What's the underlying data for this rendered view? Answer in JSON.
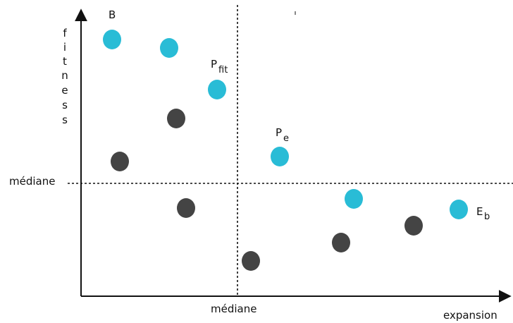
{
  "axes": {
    "x_label": "expansion",
    "y_label_letters": [
      "f",
      "i",
      "t",
      "n",
      "e",
      "s",
      "s"
    ]
  },
  "median": {
    "horizontal_label": "médiane",
    "vertical_label": "médiane"
  },
  "annotations": {
    "b": "B",
    "p_fit_main": "P",
    "p_fit_sub": "fit",
    "p_e_main": "P",
    "p_e_sub": "e",
    "e_b_main": "E",
    "e_b_sub": "b"
  },
  "colors": {
    "selected": "#29bcd6",
    "dominated": "#444444",
    "axis": "#111111"
  },
  "points": [
    {
      "id": "b",
      "group": "selected"
    },
    {
      "id": "s2",
      "group": "selected"
    },
    {
      "id": "p-fit",
      "group": "selected"
    },
    {
      "id": "p-e",
      "group": "selected"
    },
    {
      "id": "s5",
      "group": "selected"
    },
    {
      "id": "e-b",
      "group": "selected"
    },
    {
      "id": "d1",
      "group": "dominated"
    },
    {
      "id": "d2",
      "group": "dominated"
    },
    {
      "id": "d3",
      "group": "dominated"
    },
    {
      "id": "d4",
      "group": "dominated"
    },
    {
      "id": "d5",
      "group": "dominated"
    },
    {
      "id": "d6",
      "group": "dominated"
    }
  ]
}
